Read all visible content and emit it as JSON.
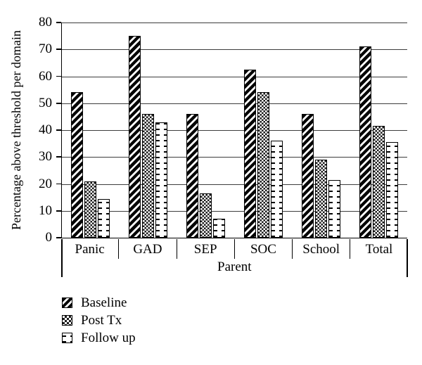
{
  "figure": {
    "background": "#ffffff",
    "colors": {
      "ink": "#000000",
      "gridline": "#3d3d3d"
    }
  },
  "chart_data": {
    "type": "bar",
    "title": "",
    "xlabel": "Parent",
    "ylabel": "Percentage above threshold per domain",
    "ylim": [
      0,
      80
    ],
    "yticks": [
      0,
      10,
      20,
      30,
      40,
      50,
      60,
      70,
      80
    ],
    "grid": "horizontal",
    "legend_position": "bottom-left",
    "categories": [
      "Panic",
      "GAD",
      "SEP",
      "SOC",
      "School",
      "Total"
    ],
    "series": [
      {
        "name": "Baseline",
        "pattern": "diagonal-hatch",
        "values": [
          54,
          75,
          46,
          62.5,
          46,
          71
        ]
      },
      {
        "name": "Post Tx",
        "pattern": "checkerboard",
        "values": [
          21,
          46,
          16.5,
          54,
          29,
          41.5
        ]
      },
      {
        "name": "Follow up",
        "pattern": "dashed-dots",
        "values": [
          14.5,
          43,
          7,
          36,
          21.5,
          35.5
        ]
      }
    ]
  }
}
